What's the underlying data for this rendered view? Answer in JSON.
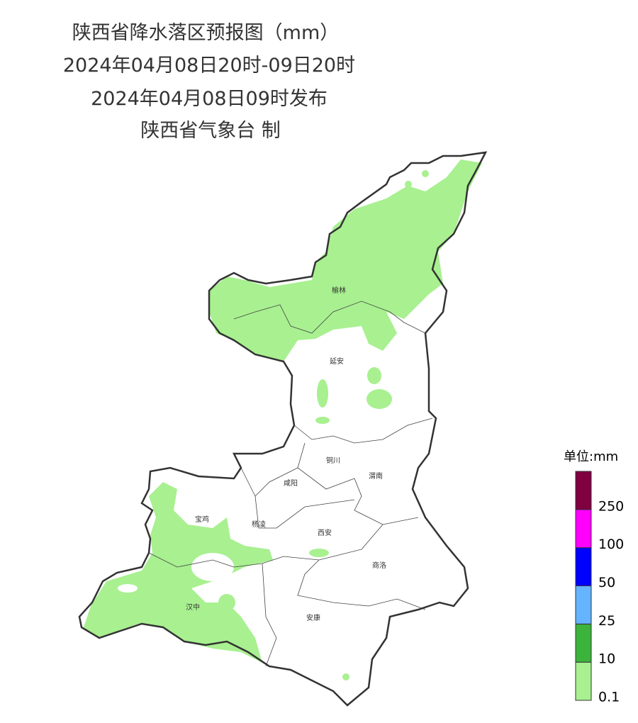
{
  "header": {
    "title": "陕西省降水落区预报图（mm）",
    "period": "2024年04月08日20时-09日20时",
    "issued": "2024年04月08日09时发布",
    "issuer": "陕西省气象台 制"
  },
  "cities": [
    {
      "label": "榆林"
    },
    {
      "label": "延安"
    },
    {
      "label": "铜川"
    },
    {
      "label": "渭南"
    },
    {
      "label": "咸阳"
    },
    {
      "label": "宝鸡"
    },
    {
      "label": "杨凌"
    },
    {
      "label": "西安"
    },
    {
      "label": "商洛"
    },
    {
      "label": "汉中"
    },
    {
      "label": "安康"
    }
  ],
  "legend": {
    "title": "单位:mm",
    "items": [
      {
        "label": "0.1",
        "color": "#a8f090"
      },
      {
        "label": "10",
        "color": "#3cb43c"
      },
      {
        "label": "25",
        "color": "#64b4ff"
      },
      {
        "label": "50",
        "color": "#0000ff"
      },
      {
        "label": "100",
        "color": "#ff00ff"
      },
      {
        "label": "250",
        "color": "#800040"
      }
    ]
  }
}
